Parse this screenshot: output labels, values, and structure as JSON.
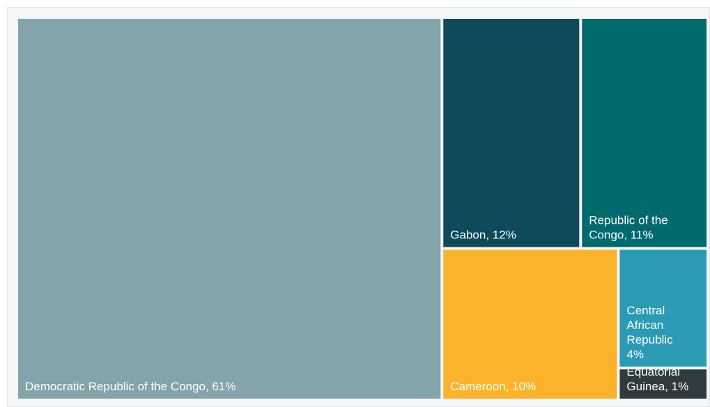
{
  "chart_data": {
    "type": "treemap",
    "items": [
      {
        "label": "Democratic Republic of the Congo, 61%",
        "name": "Democratic Republic of the Congo",
        "value": 61,
        "color": "#83a4aa"
      },
      {
        "label": "Gabon, 12%",
        "name": "Gabon",
        "value": 12,
        "color": "#0f4a5a"
      },
      {
        "label": "Republic of the Congo, 11%",
        "name": "Republic of the Congo",
        "value": 11,
        "color": "#006a6d"
      },
      {
        "label": "Cameroon, 10%",
        "name": "Cameroon",
        "value": 10,
        "color": "#fbb32c"
      },
      {
        "label": "Central African Republic 4%",
        "name": "Central African Republic",
        "value": 4,
        "color": "#2b9bb5"
      },
      {
        "label": "Equatorial Guinea, 1%",
        "name": "Equatorial Guinea",
        "value": 1,
        "color": "#2f3b3f"
      }
    ]
  }
}
